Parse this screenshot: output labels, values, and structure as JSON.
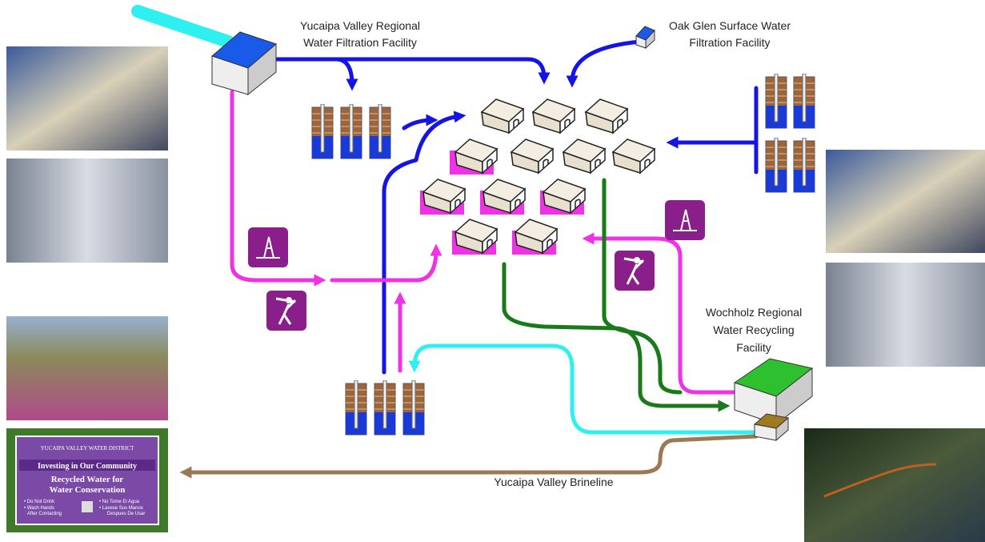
{
  "labels": {
    "yucaipa_filtration": [
      "Yucaipa Valley Regional",
      "Water Filtration Facility"
    ],
    "oak_glen": [
      "Oak Glen Surface Water",
      "Filtration Facility"
    ],
    "wochholz": [
      "Wochholz Regional",
      "Water Recycling",
      "Facility"
    ],
    "brineline": "Yucaipa Valley Brineline"
  },
  "sign": {
    "district": "YUCAIPA VALLEY WATER DISTRICT",
    "banner": "Investing in Our Community",
    "heading": [
      "Recycled Water for",
      "Water Conservation"
    ],
    "left": [
      "• Do Not Drink",
      "• Wash Hands",
      "After Contacting"
    ],
    "right": [
      "• No Tome El Agua",
      "• Lavese Sus Manos",
      "Despues De Usar"
    ]
  }
}
